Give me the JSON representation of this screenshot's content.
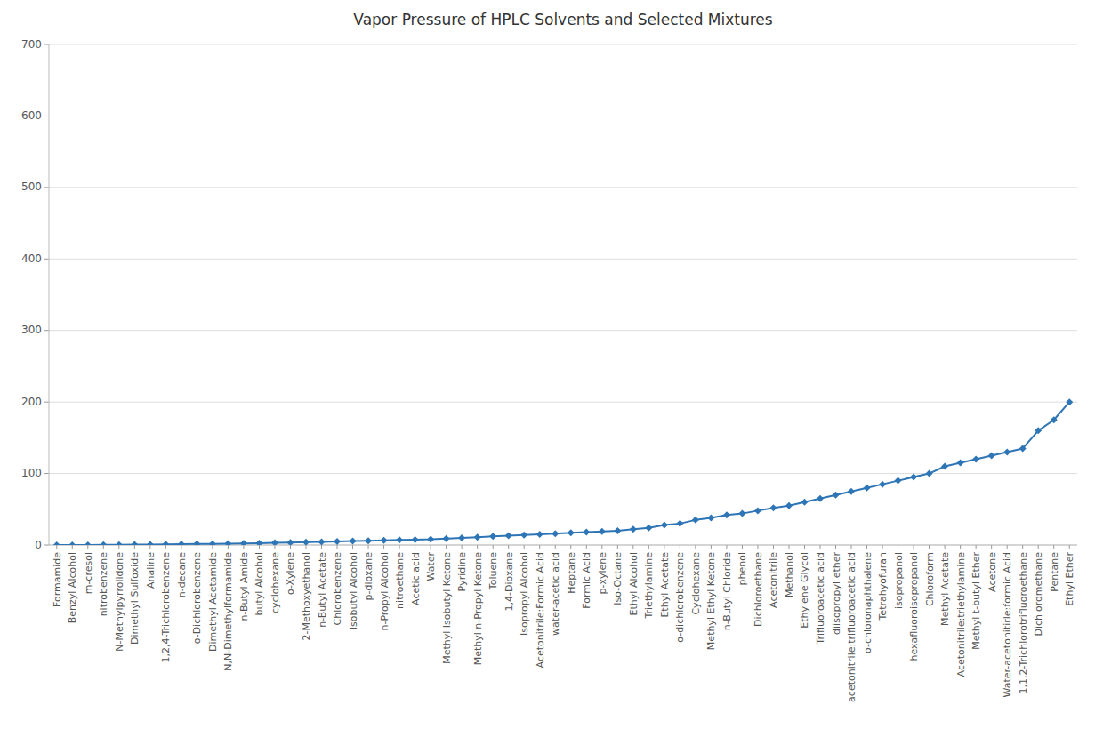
{
  "chart_data": {
    "type": "line",
    "title": "Vapor Pressure of HPLC Solvents and Selected Mixtures",
    "categories": [
      "Formamide",
      "Benzyl Alcohol",
      "m-cresol",
      "nitrobenzene",
      "N-Methylpyrrolidone",
      "Dimethyl Sulfoxide",
      "Analine",
      "1,2,4-Trichlorobenzene",
      "n-decane",
      "o-Dichlorobenzene",
      "Dimethyl Acetamide",
      "N,N-Dimethylformamide",
      "n-Butyl Amide",
      "butyl Alcohol",
      "cyclohexane",
      "o-Xylene",
      "2-Methoxyethanol",
      "n-Butyl Acetate",
      "Chlorobenzene",
      "Isobutyl Alcohol",
      "p-dioxane",
      "n-Propyl Alcohol",
      "nitroethane",
      "Acetic acid",
      "Water",
      "Methyl Isobutyl Ketone",
      "Pyridine",
      "Methyl n-Propyl Ketone",
      "Toluene",
      "1,4-Dioxane",
      "Isopropyl Alcohol",
      "Acetonitrile:Formic Acid",
      "water-acetic acid",
      "Heptane",
      "Formic Acid",
      "p-xylene",
      "Iso-Octane",
      "Ethyl Alcohol",
      "Triethylamine",
      "Ethyl Acetate",
      "o-dichlorobenzene",
      "Cyclohexane",
      "Methyl Ethyl Ketone",
      "n-Butyl Chloride",
      "phenol",
      "Dichloroethane",
      "Acetonitrile",
      "Methanol",
      "Ethylene Glycol",
      "Trifluoroacetic acid",
      "diisopropyl ether",
      "acetonitrile:trifluoroacetic acid",
      "o-chloronaphthalene",
      "Tetrahyofuran",
      "isopropanol",
      "hexafluoroisopropanol",
      "Chloroform",
      "Methyl Acetate",
      "Acetonitrile:triethylamine",
      "Methyl t-butyl Ether",
      "Acetone",
      "Water-acetonitirle:formic Acid",
      "1,1,2-Trichlorotrifluoroethane",
      "Dichloromethane",
      "Pentane",
      "Ethyl Ether"
    ],
    "values": [
      0.08,
      0.09,
      0.1,
      0.3,
      0.4,
      0.6,
      0.7,
      1.0,
      1.3,
      1.5,
      1.6,
      2.0,
      2.1,
      2.5,
      3.0,
      3.5,
      4.0,
      4.5,
      5.0,
      5.5,
      6.0,
      6.5,
      7.0,
      7.5,
      8.0,
      9.0,
      10.0,
      11.0,
      12.0,
      13.0,
      14.0,
      15.0,
      16.0,
      17.0,
      18.0,
      19.0,
      20.0,
      22.0,
      24.0,
      28.0,
      30.0,
      35.0,
      38.0,
      42.0,
      44.0,
      48.0,
      52.0,
      55.0,
      60.0,
      65.0,
      70.0,
      75.0,
      80.0,
      85.0,
      90.0,
      95.0,
      100.0,
      110.0,
      115.0,
      120.0,
      125.0,
      130.0,
      135.0,
      160.0,
      175.0,
      200.0
    ],
    "color": "#2E75B6",
    "marker": "diamond",
    "ylim": [
      0,
      700
    ],
    "yticks": [
      0,
      100,
      200,
      300,
      400,
      500,
      600,
      700
    ],
    "grid": true
  }
}
